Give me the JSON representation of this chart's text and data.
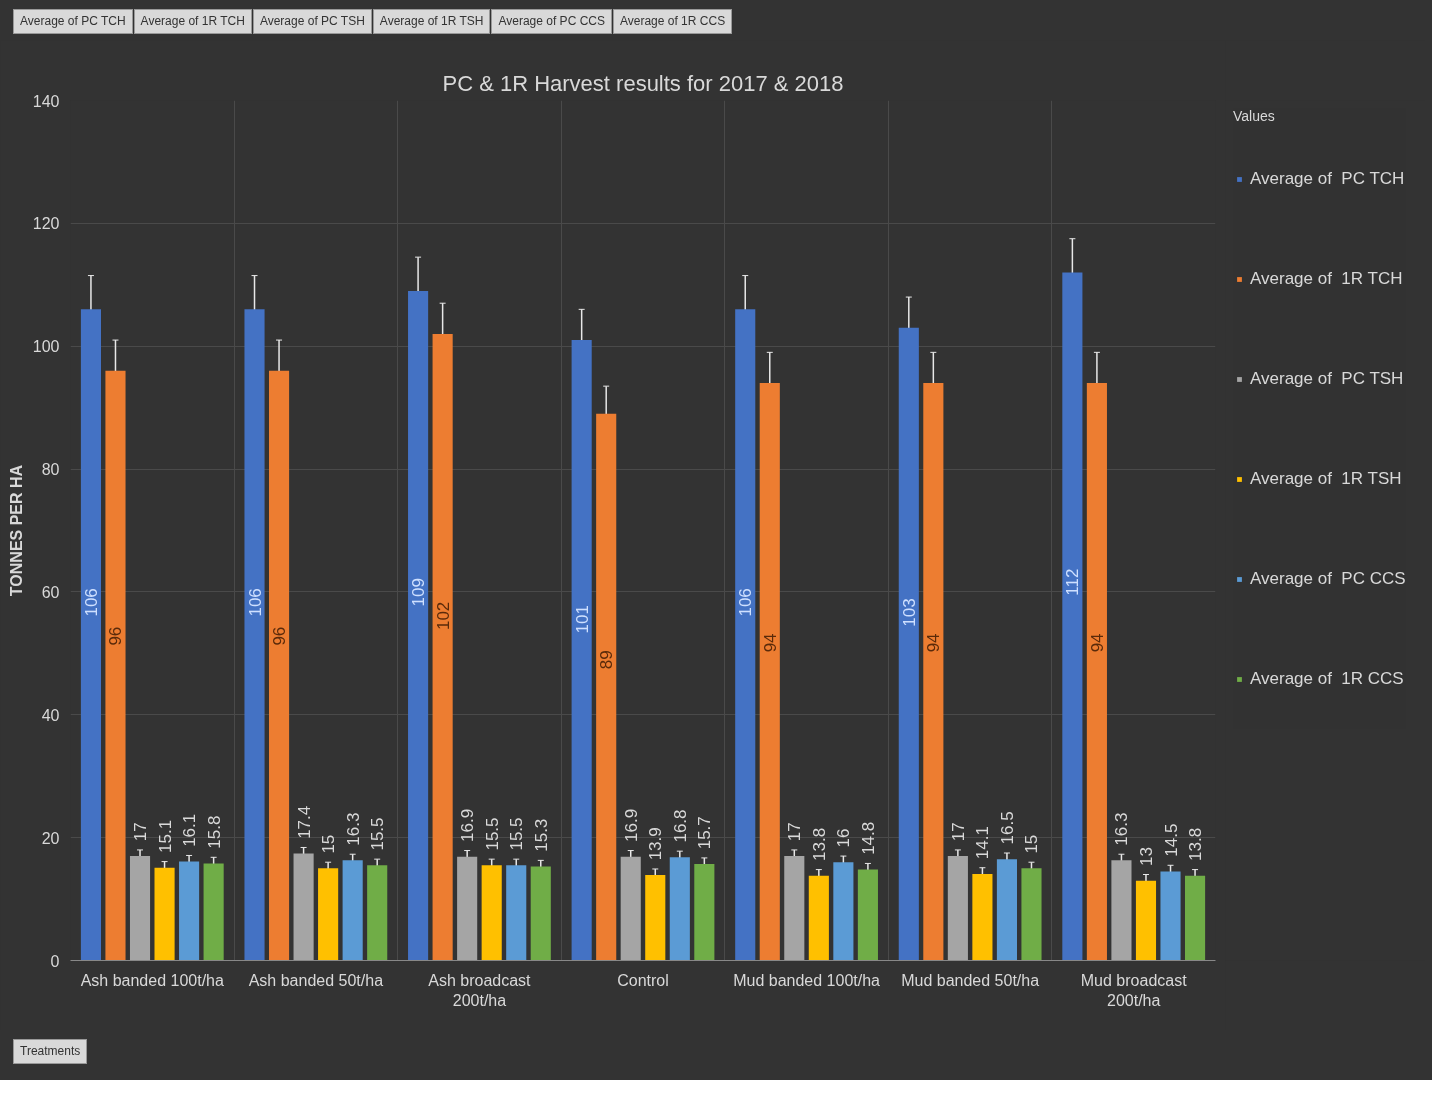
{
  "chart_data": {
    "type": "bar",
    "title": "PC & 1R Harvest results for 2017 & 2018",
    "ylabel": "TONNES PER HA",
    "xlabel": "Treatments",
    "legend_title": "Values",
    "annotations": [
      "Average of  PC TCH",
      "Average of  1R TCH",
      "Average of  PC TSH",
      "Average of  1R TSH",
      "Average of  PC CCS",
      "Average of  1R CCS"
    ],
    "categories": [
      "Ash banded 100t/ha",
      "Ash banded 50t/ha",
      "Ash broadcast 200t/ha",
      "Control",
      "Mud banded 100t/ha",
      "Mud banded 50t/ha",
      "Mud broadcast 200t/ha"
    ],
    "series": [
      {
        "name": "Average of  PC TCH",
        "color": "#4472c4",
        "values": [
          106,
          106,
          109,
          101,
          106,
          103,
          112
        ],
        "errors": [
          5.5,
          5.5,
          5.5,
          5,
          5.5,
          5,
          5.5
        ]
      },
      {
        "name": "Average of  1R TCH",
        "color": "#ed7d31",
        "values": [
          96,
          96,
          102,
          89,
          94,
          94,
          94
        ],
        "errors": [
          5,
          5,
          5,
          4.5,
          5,
          5,
          5
        ]
      },
      {
        "name": "Average of  PC TSH",
        "color": "#a5a5a5",
        "values": [
          17,
          17.4,
          16.9,
          16.9,
          17,
          17,
          16.3
        ],
        "errors": [
          1,
          1,
          1,
          1,
          1,
          1,
          1
        ]
      },
      {
        "name": "Average of  1R TSH",
        "color": "#ffc000",
        "values": [
          15.1,
          15,
          15.5,
          13.9,
          13.8,
          14.1,
          13
        ],
        "errors": [
          1,
          1,
          1,
          1,
          1,
          1,
          1
        ]
      },
      {
        "name": "Average of  PC CCS",
        "color": "#5b9bd5",
        "values": [
          16.1,
          16.3,
          15.5,
          16.8,
          16,
          16.5,
          14.5
        ],
        "errors": [
          1,
          1,
          1,
          1,
          1,
          1,
          1
        ]
      },
      {
        "name": "Average of  1R CCS",
        "color": "#70ad47",
        "values": [
          15.8,
          15.5,
          15.3,
          15.7,
          14.8,
          15,
          13.8
        ],
        "errors": [
          1,
          1,
          1,
          1,
          1,
          1,
          1
        ]
      }
    ],
    "ylim": [
      0,
      140
    ],
    "yticks": [
      0,
      20,
      40,
      60,
      80,
      100,
      120,
      140
    ],
    "grid": true,
    "legend": "right",
    "data_labels": true
  }
}
